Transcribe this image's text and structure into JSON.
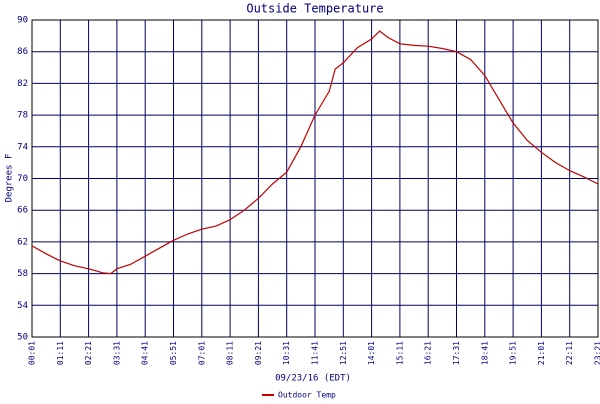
{
  "chart_data": {
    "type": "line",
    "title": "Outside Temperature",
    "x_label": "09/23/16 (EDT)",
    "y_label": "Degrees F",
    "x": [
      "00:01",
      "00:36",
      "01:11",
      "01:46",
      "02:21",
      "02:56",
      "03:16",
      "03:31",
      "04:06",
      "04:41",
      "05:16",
      "05:51",
      "06:26",
      "07:01",
      "07:36",
      "08:11",
      "08:46",
      "09:21",
      "09:56",
      "10:31",
      "11:06",
      "11:41",
      "12:16",
      "12:31",
      "12:51",
      "13:26",
      "14:01",
      "14:21",
      "14:41",
      "15:11",
      "15:46",
      "16:21",
      "16:56",
      "17:31",
      "18:06",
      "18:41",
      "19:16",
      "19:51",
      "20:26",
      "21:01",
      "21:36",
      "22:11",
      "22:46",
      "23:21"
    ],
    "series": [
      {
        "name": "Outdoor Temp",
        "color": "#c00000",
        "values": [
          61.5,
          60.5,
          59.6,
          59.0,
          58.6,
          58.1,
          58.0,
          58.6,
          59.2,
          60.2,
          61.2,
          62.2,
          63.0,
          63.6,
          64.0,
          64.8,
          66.0,
          67.5,
          69.3,
          70.8,
          74.0,
          78.0,
          81.0,
          83.8,
          84.6,
          86.5,
          87.6,
          88.6,
          87.8,
          87.0,
          86.8,
          86.7,
          86.4,
          86.0,
          85.0,
          83.0,
          80.0,
          77.0,
          74.8,
          73.3,
          72.0,
          71.0,
          70.2,
          69.3
        ]
      }
    ],
    "xlim": [
      "00:01",
      "23:21"
    ],
    "xticks": [
      "00:01",
      "01:11",
      "02:21",
      "03:31",
      "04:41",
      "05:51",
      "07:01",
      "08:11",
      "09:21",
      "10:31",
      "11:41",
      "12:51",
      "14:01",
      "15:11",
      "16:21",
      "17:31",
      "18:41",
      "19:51",
      "21:01",
      "22:11",
      "23:21"
    ],
    "ylim": [
      50,
      90
    ],
    "yticks": [
      50,
      54,
      58,
      62,
      66,
      70,
      74,
      78,
      82,
      86,
      90
    ],
    "grid": true,
    "grid_color": "#000066",
    "legend": "bottom"
  }
}
